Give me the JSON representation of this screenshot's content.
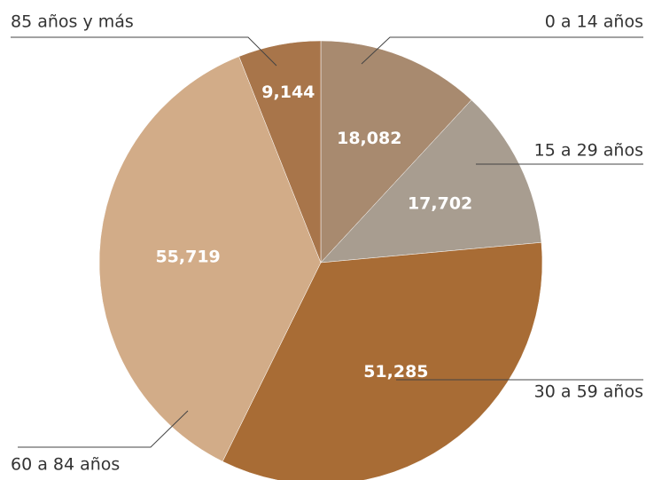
{
  "chart_data": {
    "type": "pie",
    "categories": [
      "0 a 14 años",
      "15 a 29 años",
      "30 a 59 años",
      "60 a 84 años",
      "85 años y más"
    ],
    "values": [
      18082,
      17702,
      51285,
      55719,
      9144
    ],
    "value_labels": [
      "18,082",
      "17,702",
      "51,285",
      "55,719",
      "9,144"
    ],
    "colors": [
      "#a88a6f",
      "#a89d90",
      "#a86c35",
      "#d2ac88",
      "#a8754a"
    ]
  }
}
